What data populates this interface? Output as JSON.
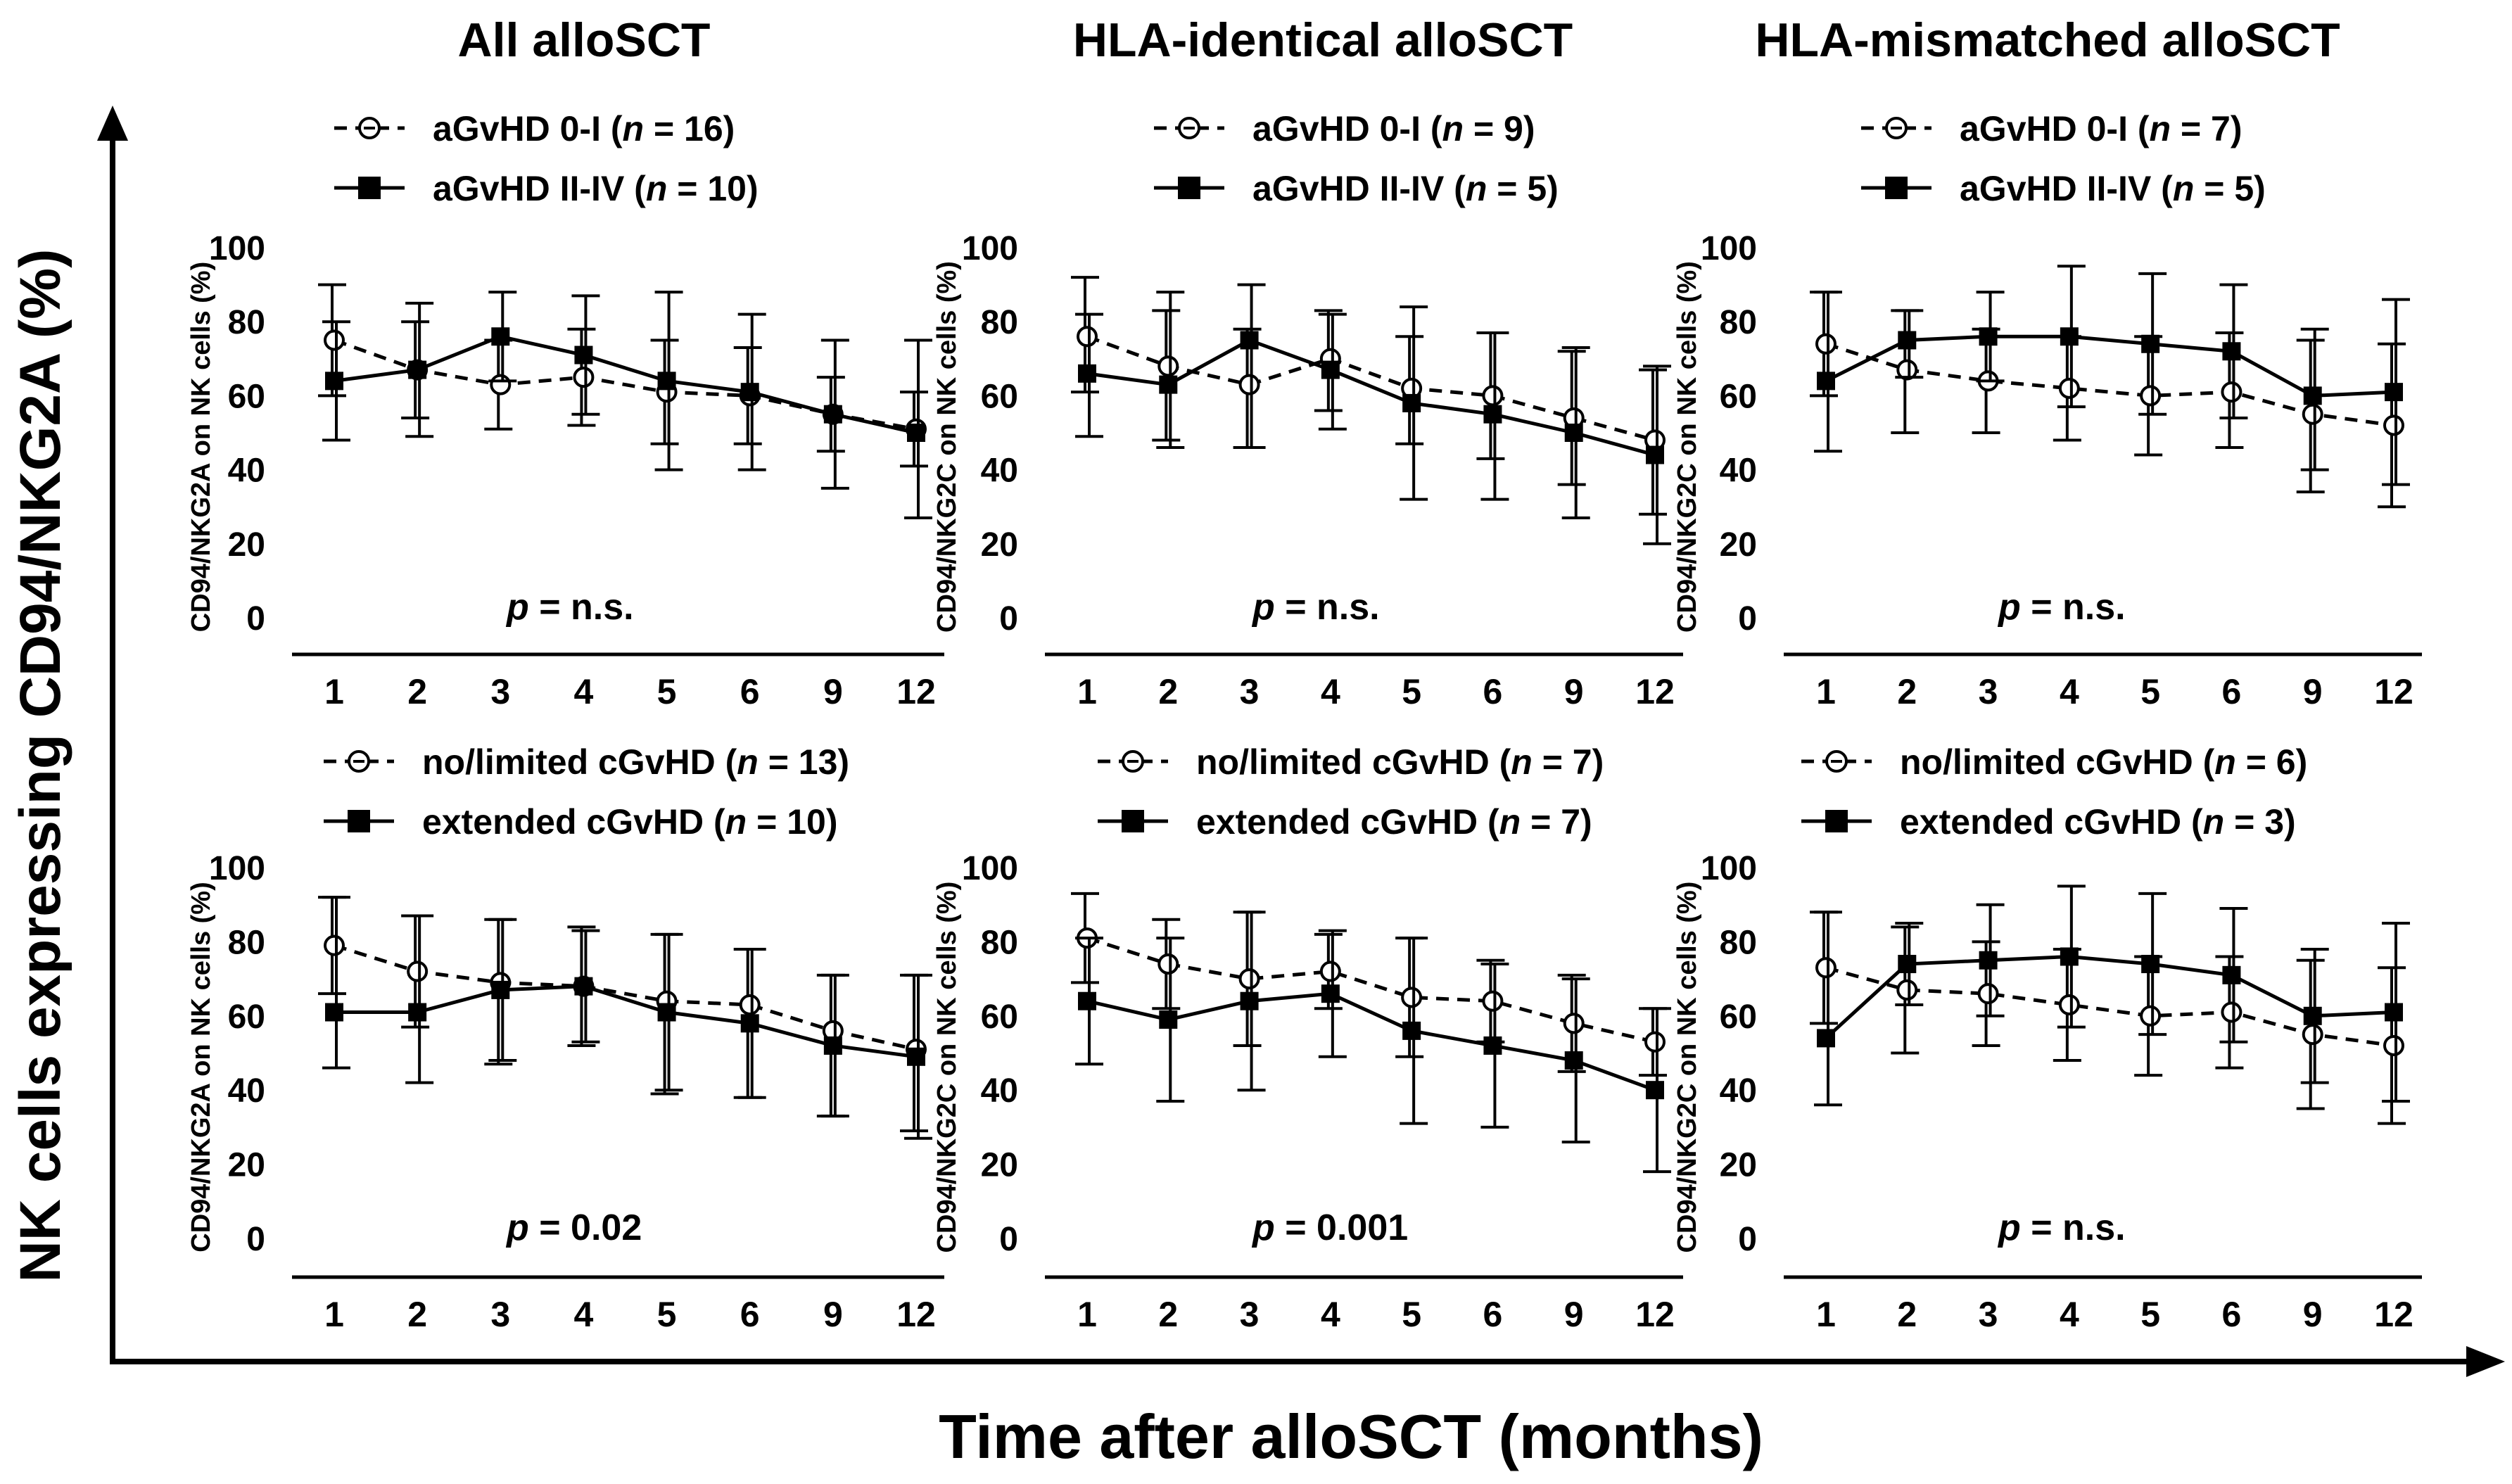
{
  "figure": {
    "y_label": "NK cells expressing CD94/NKG2A (%)",
    "x_label": "Time after alloSCT (months)",
    "column_titles": [
      "All alloSCT",
      "HLA-identical  alloSCT",
      "HLA-mismatched alloSCT"
    ]
  },
  "chart_data": [
    {
      "type": "line",
      "panel": "top-left",
      "ylabel": "CD94/NKG2A on NK cells (%)",
      "categories": [
        "1",
        "2",
        "3",
        "4",
        "5",
        "6",
        "9",
        "12"
      ],
      "ylim": [
        0,
        100
      ],
      "yticks": [
        "0",
        "20",
        "40",
        "60",
        "80",
        "100"
      ],
      "p_prefix": "p",
      "p_text": " = n.s.",
      "series": [
        {
          "name_main": "aGvHD 0-I (",
          "name_n": "n",
          "name_eq": " = 16)",
          "style": "dashed-open-circle",
          "values": [
            75,
            67,
            63,
            65,
            61,
            60,
            55,
            51
          ],
          "err_hi": [
            15,
            13,
            12,
            13,
            14,
            13,
            10,
            10
          ],
          "err_lo": [
            15,
            13,
            12,
            13,
            14,
            13,
            10,
            10
          ]
        },
        {
          "name_main": "aGvHD II-IV (",
          "name_n": "n",
          "name_eq": " = 10)",
          "style": "solid-filled-square",
          "values": [
            64,
            67,
            76,
            71,
            64,
            61,
            55,
            50
          ],
          "err_hi": [
            16,
            18,
            12,
            16,
            24,
            21,
            20,
            25
          ],
          "err_lo": [
            16,
            18,
            12,
            16,
            24,
            21,
            20,
            23
          ]
        }
      ]
    },
    {
      "type": "line",
      "panel": "top-middle",
      "ylabel": "CD94/NKG2C on NK cells (%)",
      "categories": [
        "1",
        "2",
        "3",
        "4",
        "5",
        "6",
        "9",
        "12"
      ],
      "ylim": [
        0,
        100
      ],
      "yticks": [
        "0",
        "20",
        "40",
        "60",
        "80",
        "100"
      ],
      "p_prefix": "p",
      "p_text": " = n.s.",
      "series": [
        {
          "name_main": "aGvHD 0-I (",
          "name_n": "n",
          "name_eq": " = 9)",
          "style": "dashed-open-circle",
          "values": [
            76,
            68,
            63,
            70,
            62,
            60,
            54,
            48
          ],
          "err_hi": [
            16,
            15,
            15,
            13,
            14,
            17,
            18,
            19
          ],
          "err_lo": [
            15,
            20,
            17,
            14,
            15,
            17,
            18,
            20
          ]
        },
        {
          "name_main": "aGvHD II-IV (",
          "name_n": "n",
          "name_eq": " = 5)",
          "style": "solid-filled-square",
          "values": [
            66,
            63,
            75,
            67,
            58,
            55,
            50,
            44
          ],
          "err_hi": [
            16,
            25,
            15,
            15,
            26,
            22,
            23,
            24
          ],
          "err_lo": [
            17,
            17,
            29,
            16,
            26,
            23,
            23,
            24
          ]
        }
      ]
    },
    {
      "type": "line",
      "panel": "top-right",
      "ylabel": "CD94/NKG2C on NK cells (%)",
      "categories": [
        "1",
        "2",
        "3",
        "4",
        "5",
        "6",
        "9",
        "12"
      ],
      "ylim": [
        0,
        100
      ],
      "yticks": [
        "0",
        "20",
        "40",
        "60",
        "80",
        "100"
      ],
      "p_prefix": "p",
      "p_text": " =  n.s.",
      "series": [
        {
          "name_main": "aGvHD 0-I (",
          "name_n": "n",
          "name_eq": " = 7)",
          "style": "dashed-open-circle",
          "values": [
            74,
            67,
            64,
            62,
            60,
            61,
            55,
            52
          ],
          "err_hi": [
            14,
            16,
            14,
            14,
            16,
            16,
            20,
            22
          ],
          "err_lo": [
            14,
            17,
            14,
            14,
            16,
            15,
            21,
            22
          ]
        },
        {
          "name_main": "aGvHD II-IV (",
          "name_n": "n",
          "name_eq": " = 5)",
          "style": "solid-filled-square",
          "values": [
            64,
            75,
            76,
            76,
            74,
            72,
            60,
            61
          ],
          "err_hi": [
            24,
            8,
            12,
            19,
            19,
            18,
            18,
            25
          ],
          "err_lo": [
            19,
            10,
            12,
            19,
            19,
            18,
            20,
            25
          ]
        }
      ]
    },
    {
      "type": "line",
      "panel": "bottom-left",
      "ylabel": "CD94/NKG2A on NK cells (%)",
      "categories": [
        "1",
        "2",
        "3",
        "4",
        "5",
        "6",
        "9",
        "12"
      ],
      "ylim": [
        0,
        100
      ],
      "yticks": [
        "0",
        "20",
        "40",
        "60",
        "80",
        "100"
      ],
      "p_prefix": "p",
      "p_text": " = 0.02",
      "series": [
        {
          "name_main": "no/limited cGvHD (",
          "name_n": "n",
          "name_eq": " = 13)",
          "style": "dashed-open-circle",
          "values": [
            79,
            72,
            69,
            68,
            64,
            63,
            56,
            51
          ],
          "err_hi": [
            13,
            15,
            17,
            16,
            18,
            15,
            15,
            20
          ],
          "err_lo": [
            13,
            15,
            22,
            16,
            25,
            25,
            23,
            22
          ]
        },
        {
          "name_main": "extended cGvHD (",
          "name_n": "n",
          "name_eq": " = 10)",
          "style": "solid-filled-square",
          "values": [
            61,
            61,
            67,
            68,
            61,
            58,
            52,
            49
          ],
          "err_hi": [
            31,
            26,
            19,
            15,
            21,
            20,
            19,
            22
          ],
          "err_lo": [
            15,
            19,
            19,
            15,
            21,
            20,
            19,
            22
          ]
        }
      ]
    },
    {
      "type": "line",
      "panel": "bottom-middle",
      "ylabel": "CD94/NKG2C on NK cells (%)",
      "categories": [
        "1",
        "2",
        "3",
        "4",
        "5",
        "6",
        "9",
        "12"
      ],
      "ylim": [
        0,
        100
      ],
      "yticks": [
        "0",
        "20",
        "40",
        "60",
        "80",
        "100"
      ],
      "p_prefix": "p",
      "p_text": " = 0.001",
      "series": [
        {
          "name_main": "no/limited cGvHD (",
          "name_n": "n",
          "name_eq": " = 7)",
          "style": "dashed-open-circle",
          "values": [
            81,
            74,
            70,
            72,
            65,
            64,
            58,
            53
          ],
          "err_hi": [
            12,
            12,
            18,
            10,
            16,
            11,
            13,
            9
          ],
          "err_lo": [
            12,
            12,
            18,
            10,
            16,
            11,
            13,
            9
          ]
        },
        {
          "name_main": "extended cGvHD (",
          "name_n": "n",
          "name_eq": " = 7)",
          "style": "solid-filled-square",
          "values": [
            64,
            59,
            64,
            66,
            56,
            52,
            48,
            40
          ],
          "err_hi": [
            17,
            22,
            24,
            17,
            25,
            22,
            22,
            22
          ],
          "err_lo": [
            17,
            22,
            24,
            17,
            25,
            22,
            22,
            22
          ]
        }
      ]
    },
    {
      "type": "line",
      "panel": "bottom-right",
      "ylabel": "CD94/NKG2C on NK cells (%)",
      "categories": [
        "1",
        "2",
        "3",
        "4",
        "5",
        "6",
        "9",
        "12"
      ],
      "ylim": [
        0,
        100
      ],
      "yticks": [
        "0",
        "20",
        "40",
        "60",
        "80",
        "100"
      ],
      "p_prefix": "p",
      "p_text": " = n.s.",
      "series": [
        {
          "name_main": "no/limited cGvHD (",
          "name_n": "n",
          "name_eq": " = 6)",
          "style": "dashed-open-circle",
          "values": [
            73,
            67,
            66,
            63,
            60,
            61,
            55,
            52
          ],
          "err_hi": [
            15,
            17,
            14,
            15,
            16,
            15,
            20,
            21
          ],
          "err_lo": [
            15,
            17,
            14,
            15,
            16,
            15,
            20,
            21
          ]
        },
        {
          "name_main": "extended cGvHD (",
          "name_n": "n",
          "name_eq": " = 3)",
          "style": "solid-filled-square",
          "values": [
            54,
            74,
            75,
            76,
            74,
            71,
            60,
            61
          ],
          "err_hi": [
            34,
            11,
            15,
            19,
            19,
            18,
            18,
            24
          ],
          "err_lo": [
            18,
            11,
            15,
            19,
            19,
            18,
            18,
            24
          ]
        }
      ]
    }
  ]
}
